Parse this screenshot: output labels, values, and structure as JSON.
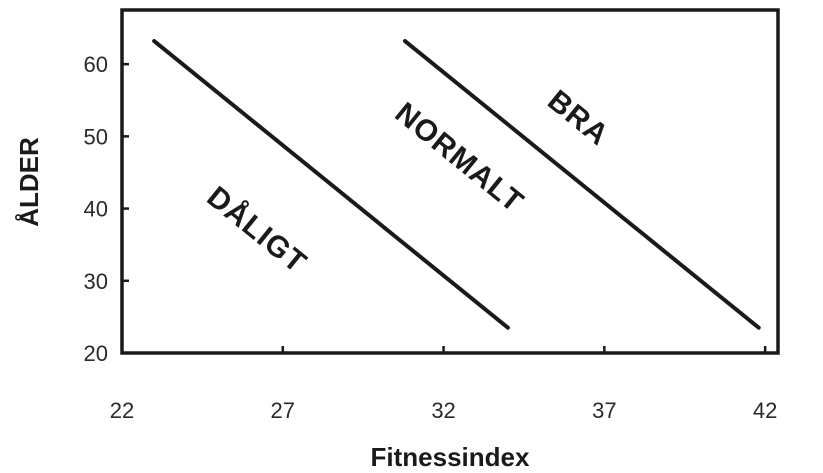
{
  "chart_data": {
    "type": "line",
    "title": "",
    "xlabel": "Fitnessindex",
    "ylabel": "ÅLDER",
    "xlim": [
      22,
      42.4
    ],
    "ylim": [
      20,
      67.5
    ],
    "x_ticks": [
      22,
      27,
      32,
      37,
      42
    ],
    "y_ticks": [
      20,
      30,
      40,
      50,
      60
    ],
    "grid": false,
    "series": [
      {
        "x": [
          23.0,
          34.0
        ],
        "y": [
          63.2,
          23.5
        ]
      },
      {
        "x": [
          30.8,
          41.8
        ],
        "y": [
          63.2,
          23.5
        ]
      }
    ],
    "annotations": [
      {
        "text": "DÅLIGT",
        "x": 26.0,
        "y": 36.0
      },
      {
        "text": "NORMALT",
        "x": 32.3,
        "y": 46.0
      },
      {
        "text": "BRA",
        "x": 36.0,
        "y": 51.5
      }
    ]
  }
}
